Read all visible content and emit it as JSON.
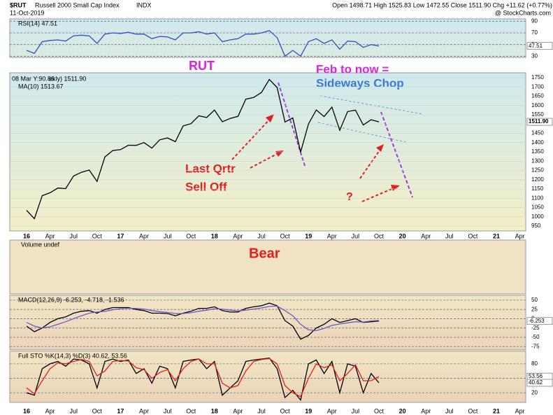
{
  "header": {
    "symbol": "$RUT",
    "name": "Russell 2000 Small Cap Index",
    "exchange": "INDX",
    "date": "11-Oct-2019",
    "quote": "Open 1498.71  High 1525.83  Low 1472.55  Close 1511.90  Chg +11.62 (+0.77%)",
    "source": "@ StockCharts.com"
  },
  "x_axis_labels": [
    "16",
    "Apr",
    "Jul",
    "Oct",
    "17",
    "Apr",
    "Jul",
    "Oct",
    "18",
    "Apr",
    "Jul",
    "Oct",
    "19",
    "Apr",
    "Jul",
    "Oct",
    "20",
    "Apr",
    "Jul",
    "Oct",
    "21",
    "Apr"
  ],
  "volume_label": "Volume undef",
  "annotations": {
    "rut": "RUT",
    "feb": "Feb to now =",
    "chop": "Sideways Chop",
    "last": "Last Qrtr",
    "selloff": "Sell Off",
    "question": "?",
    "bear": "Bear"
  },
  "chart_data": [
    {
      "type": "line",
      "label": "ekly) 1511.90",
      "overlay_label": "08 Mar Y:90.86",
      "ma_label": "MA(10) 1513.67",
      "last_label": "1511.90",
      "grid": true,
      "ylim": [
        924,
        1776
      ],
      "yticks": [
        1750,
        1700,
        1650,
        1600,
        1550,
        1500,
        1450,
        1400,
        1350,
        1300,
        1250,
        1200,
        1150,
        1100,
        1050,
        1000,
        950
      ],
      "x": [
        "2016-01",
        "2016-02",
        "2016-03",
        "2016-04",
        "2016-05",
        "2016-06",
        "2016-07",
        "2016-08",
        "2016-09",
        "2016-10",
        "2016-11",
        "2016-12",
        "2017-01",
        "2017-02",
        "2017-03",
        "2017-04",
        "2017-05",
        "2017-06",
        "2017-07",
        "2017-08",
        "2017-09",
        "2017-10",
        "2017-11",
        "2017-12",
        "2018-01",
        "2018-02",
        "2018-03",
        "2018-04",
        "2018-05",
        "2018-06",
        "2018-07",
        "2018-08",
        "2018-09",
        "2018-10",
        "2018-11",
        "2018-12",
        "2019-01",
        "2019-02",
        "2019-03",
        "2019-04",
        "2019-05",
        "2019-06",
        "2019-07",
        "2019-08",
        "2019-09",
        "2019-10"
      ],
      "series": [
        {
          "color": "#000000",
          "values": [
            1035,
            990,
            1114,
            1130,
            1155,
            1152,
            1220,
            1240,
            1252,
            1191,
            1322,
            1357,
            1362,
            1386,
            1385,
            1400,
            1370,
            1415,
            1425,
            1405,
            1490,
            1502,
            1544,
            1535,
            1575,
            1512,
            1530,
            1541,
            1634,
            1643,
            1670,
            1740,
            1697,
            1511,
            1533,
            1349,
            1500,
            1576,
            1540,
            1591,
            1466,
            1567,
            1575,
            1495,
            1523,
            1511.9
          ]
        }
      ]
    },
    {
      "type": "line",
      "label": "RSI(14) 47.51",
      "last_label": "47.51",
      "grid": true,
      "ylim": [
        28,
        94
      ],
      "yticks": [
        90,
        70,
        50,
        30
      ],
      "x": [
        "2016-01",
        "2016-02",
        "2016-03",
        "2016-04",
        "2016-05",
        "2016-06",
        "2016-07",
        "2016-08",
        "2016-09",
        "2016-10",
        "2016-11",
        "2016-12",
        "2017-01",
        "2017-02",
        "2017-03",
        "2017-04",
        "2017-05",
        "2017-06",
        "2017-07",
        "2017-08",
        "2017-09",
        "2017-10",
        "2017-11",
        "2017-12",
        "2018-01",
        "2018-02",
        "2018-03",
        "2018-04",
        "2018-05",
        "2018-06",
        "2018-07",
        "2018-08",
        "2018-09",
        "2018-10",
        "2018-11",
        "2018-12",
        "2019-01",
        "2019-02",
        "2019-03",
        "2019-04",
        "2019-05",
        "2019-06",
        "2019-07",
        "2019-08",
        "2019-09",
        "2019-10"
      ],
      "series": [
        {
          "color": "#2f4fc0",
          "values": [
            40,
            35,
            55,
            57,
            58,
            56,
            65,
            66,
            65,
            52,
            68,
            70,
            69,
            71,
            68,
            68,
            60,
            64,
            63,
            58,
            70,
            70,
            72,
            68,
            70,
            55,
            58,
            60,
            68,
            68,
            70,
            74,
            62,
            30,
            40,
            30,
            55,
            60,
            52,
            58,
            42,
            56,
            55,
            45,
            50,
            47.51
          ]
        }
      ]
    },
    {
      "type": "line",
      "label": "MACD(12,26,9) -6.253, -4.718, -1.536",
      "last_label": "-6.253",
      "grid": true,
      "ylim": [
        -84,
        63
      ],
      "yticks": [
        50,
        25,
        0,
        -25,
        -50,
        -75
      ],
      "x": [
        "2016-01",
        "2016-02",
        "2016-03",
        "2016-04",
        "2016-05",
        "2016-06",
        "2016-07",
        "2016-08",
        "2016-09",
        "2016-10",
        "2016-11",
        "2016-12",
        "2017-01",
        "2017-02",
        "2017-03",
        "2017-04",
        "2017-05",
        "2017-06",
        "2017-07",
        "2017-08",
        "2017-09",
        "2017-10",
        "2017-11",
        "2017-12",
        "2018-01",
        "2018-02",
        "2018-03",
        "2018-04",
        "2018-05",
        "2018-06",
        "2018-07",
        "2018-08",
        "2018-09",
        "2018-10",
        "2018-11",
        "2018-12",
        "2019-01",
        "2019-02",
        "2019-03",
        "2019-04",
        "2019-05",
        "2019-06",
        "2019-07",
        "2019-08",
        "2019-09",
        "2019-10"
      ],
      "series": [
        {
          "color": "#000000",
          "values": [
            -20,
            -35,
            -25,
            -10,
            0,
            5,
            15,
            20,
            22,
            15,
            25,
            30,
            30,
            30,
            25,
            22,
            15,
            15,
            14,
            8,
            15,
            20,
            28,
            28,
            32,
            22,
            18,
            18,
            28,
            32,
            35,
            42,
            35,
            -5,
            -20,
            -55,
            -45,
            -25,
            -15,
            0,
            -10,
            -5,
            0,
            -10,
            -8,
            -6.253
          ]
        },
        {
          "color": "#6a5acd",
          "values": [
            -10,
            -20,
            -25,
            -22,
            -15,
            -8,
            0,
            8,
            15,
            18,
            20,
            24,
            27,
            28,
            28,
            26,
            22,
            19,
            17,
            14,
            14,
            16,
            20,
            23,
            27,
            26,
            23,
            21,
            23,
            26,
            29,
            33,
            34,
            22,
            8,
            -15,
            -30,
            -32,
            -26,
            -18,
            -14,
            -11,
            -8,
            -9,
            -6,
            -4.718
          ]
        }
      ]
    },
    {
      "type": "line",
      "label": "Full STO %K(14,3) %D(3) 40.62, 53.56",
      "last_labels": [
        "53.56",
        "40.62"
      ],
      "grid": true,
      "ylim": [
        0,
        106
      ],
      "yticks": [
        80,
        50,
        20
      ],
      "x": [
        "2016-01",
        "2016-02",
        "2016-03",
        "2016-04",
        "2016-05",
        "2016-06",
        "2016-07",
        "2016-08",
        "2016-09",
        "2016-10",
        "2016-11",
        "2016-12",
        "2017-01",
        "2017-02",
        "2017-03",
        "2017-04",
        "2017-05",
        "2017-06",
        "2017-07",
        "2017-08",
        "2017-09",
        "2017-10",
        "2017-11",
        "2017-12",
        "2018-01",
        "2018-02",
        "2018-03",
        "2018-04",
        "2018-05",
        "2018-06",
        "2018-07",
        "2018-08",
        "2018-09",
        "2018-10",
        "2018-11",
        "2018-12",
        "2019-01",
        "2019-02",
        "2019-03",
        "2019-04",
        "2019-05",
        "2019-06",
        "2019-07",
        "2019-08",
        "2019-09",
        "2019-10"
      ],
      "series": [
        {
          "color": "#000000",
          "values": [
            20,
            15,
            70,
            80,
            85,
            75,
            90,
            88,
            80,
            30,
            85,
            90,
            85,
            88,
            60,
            70,
            40,
            75,
            70,
            30,
            85,
            88,
            90,
            70,
            85,
            15,
            30,
            45,
            85,
            88,
            90,
            92,
            70,
            10,
            25,
            5,
            80,
            88,
            60,
            85,
            20,
            80,
            75,
            20,
            60,
            40.62
          ]
        },
        {
          "color": "#e02020",
          "values": [
            30,
            18,
            45,
            70,
            82,
            80,
            85,
            89,
            85,
            55,
            65,
            85,
            87,
            86,
            72,
            68,
            50,
            62,
            68,
            45,
            70,
            85,
            90,
            80,
            80,
            40,
            30,
            35,
            65,
            85,
            89,
            91,
            80,
            35,
            20,
            12,
            50,
            80,
            72,
            78,
            45,
            60,
            78,
            45,
            45,
            53.56
          ]
        }
      ]
    }
  ]
}
